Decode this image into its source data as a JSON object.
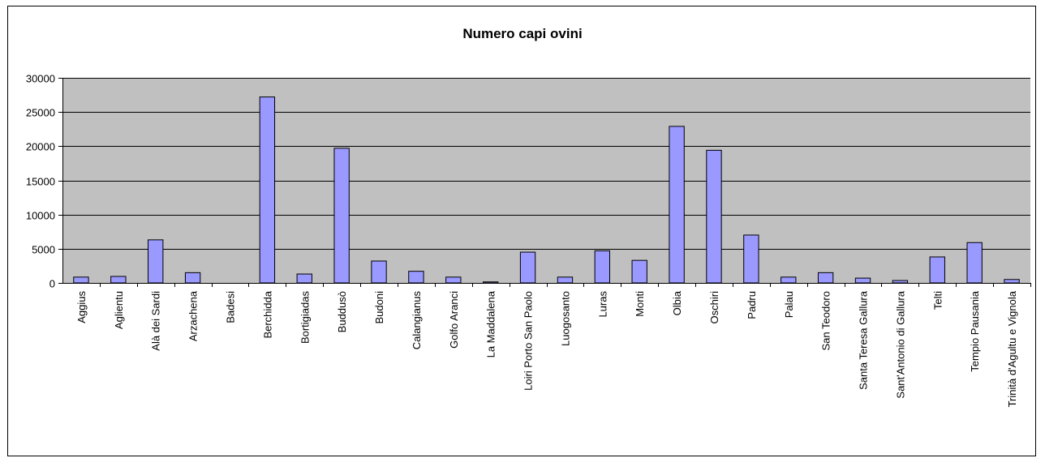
{
  "chart_data": {
    "type": "bar",
    "title": "Numero capi ovini",
    "xlabel": "",
    "ylabel": "",
    "ylim": [
      0,
      30000
    ],
    "yticks": [
      0,
      5000,
      10000,
      15000,
      20000,
      25000,
      30000
    ],
    "grid": true,
    "legend": "none",
    "categories": [
      "Aggius",
      "Aglientu",
      "Alà dei Sardi",
      "Arzachena",
      "Badesi",
      "Berchidda",
      "Bortigiadas",
      "Buddusò",
      "Budoni",
      "Calangianus",
      "Golfo Aranci",
      "La Maddalena",
      "Loiri Porto San Paolo",
      "Luogosanto",
      "Luras",
      "Monti",
      "Olbia",
      "Oschiri",
      "Padru",
      "Palau",
      "San Teodoro",
      "Santa Teresa Gallura",
      "Sant'Antonio di Gallura",
      "Telti",
      "Tempio Pausania",
      "Trinità d'Agultu e Vignola"
    ],
    "values": [
      850,
      950,
      6300,
      1500,
      0,
      27200,
      1300,
      19700,
      3200,
      1700,
      850,
      150,
      4500,
      850,
      4700,
      3300,
      22900,
      19400,
      7000,
      850,
      1500,
      700,
      350,
      3800,
      5900,
      500
    ],
    "colors": {
      "bar_fill": "#9999ff",
      "bar_stroke": "#000000",
      "plot_background": "#c0c0c0",
      "gridline": "#000000"
    }
  }
}
